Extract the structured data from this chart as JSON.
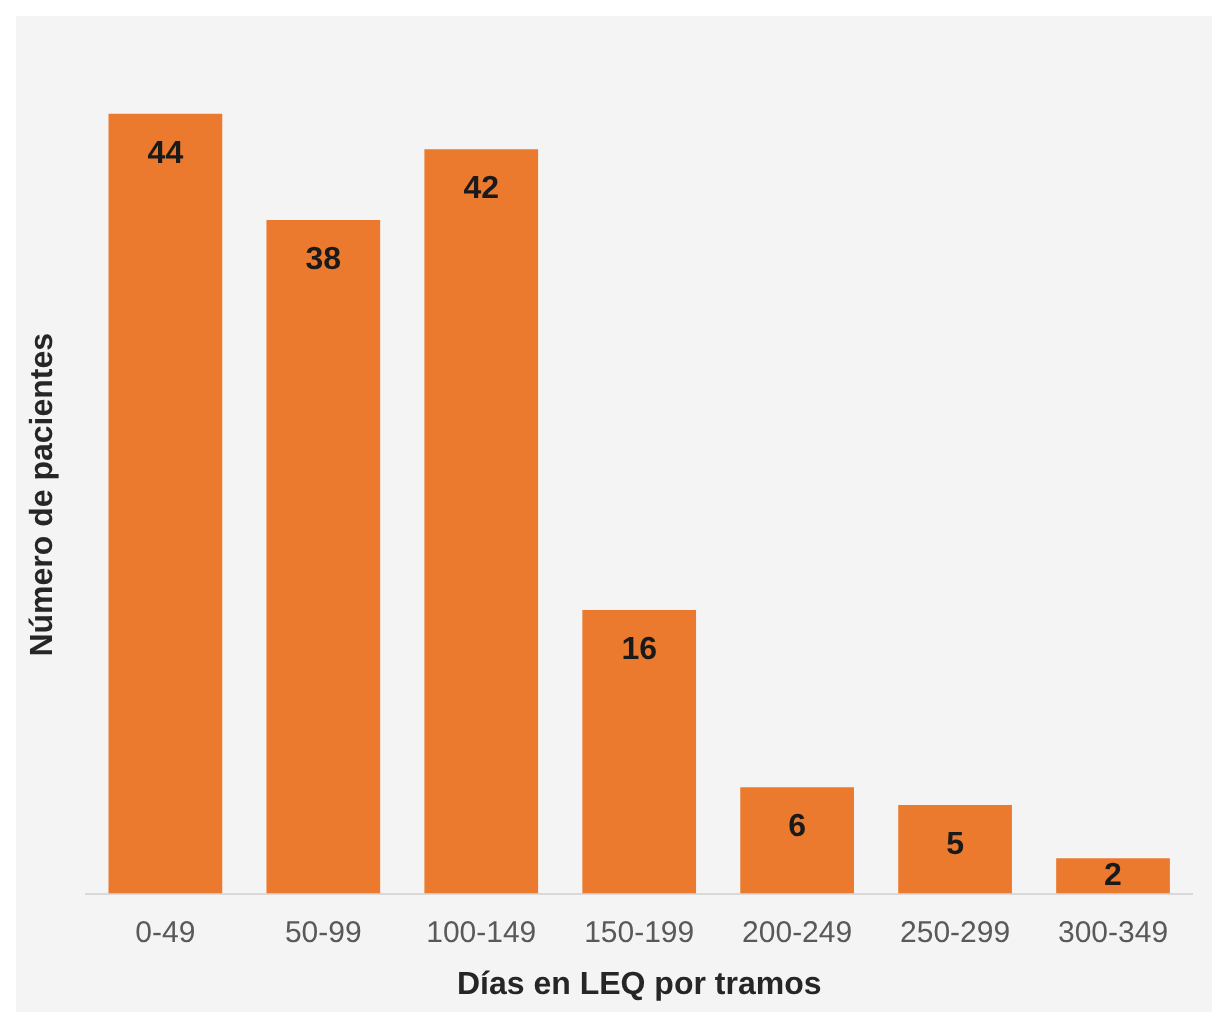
{
  "chart_data": {
    "type": "bar",
    "xlabel": "Días en LEQ por tramos",
    "ylabel": "Número de pacientes",
    "categories": [
      "0-49",
      "50-99",
      "100-149",
      "150-199",
      "200-249",
      "250-299",
      "300-349"
    ],
    "values": [
      44,
      38,
      42,
      16,
      6,
      5,
      2
    ],
    "color": "#ec7a2e",
    "data_labels": true,
    "grid": false,
    "legend": false,
    "tick_labels": "x"
  }
}
